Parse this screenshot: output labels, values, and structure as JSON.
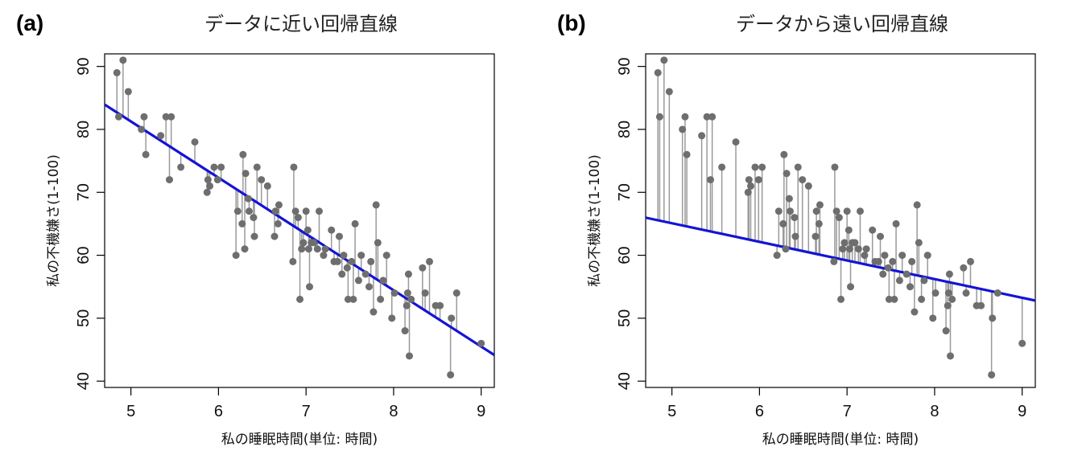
{
  "chart_data": [
    {
      "type": "scatter",
      "panel_label": "(a)",
      "title": "データに近い回帰直線",
      "xlabel": "私の睡眠時間(単位: 時間)",
      "ylabel": "私の不機嫌さ(1-100)",
      "xlim": [
        4.7,
        9.15
      ],
      "ylim": [
        39,
        92
      ],
      "xticks": [
        5,
        6,
        7,
        8,
        9
      ],
      "yticks": [
        40,
        50,
        60,
        70,
        80,
        90
      ],
      "grid": false,
      "residual_lines": true,
      "regression_line": {
        "intercept": 125.96,
        "slope": -8.94,
        "color": "#1414d4"
      },
      "point_color": "#6e6e6e",
      "points": [
        {
          "x": 4.84,
          "y": 89
        },
        {
          "x": 4.86,
          "y": 82
        },
        {
          "x": 4.91,
          "y": 91
        },
        {
          "x": 4.97,
          "y": 86
        },
        {
          "x": 5.12,
          "y": 80
        },
        {
          "x": 5.15,
          "y": 82
        },
        {
          "x": 5.17,
          "y": 76
        },
        {
          "x": 5.34,
          "y": 79
        },
        {
          "x": 5.4,
          "y": 82
        },
        {
          "x": 5.44,
          "y": 72
        },
        {
          "x": 5.46,
          "y": 82
        },
        {
          "x": 5.57,
          "y": 74
        },
        {
          "x": 5.73,
          "y": 78
        },
        {
          "x": 5.87,
          "y": 70
        },
        {
          "x": 5.88,
          "y": 72
        },
        {
          "x": 5.9,
          "y": 71
        },
        {
          "x": 5.95,
          "y": 74
        },
        {
          "x": 5.99,
          "y": 72
        },
        {
          "x": 6.03,
          "y": 74
        },
        {
          "x": 6.2,
          "y": 60
        },
        {
          "x": 6.22,
          "y": 67
        },
        {
          "x": 6.27,
          "y": 65
        },
        {
          "x": 6.28,
          "y": 76
        },
        {
          "x": 6.3,
          "y": 61
        },
        {
          "x": 6.31,
          "y": 73
        },
        {
          "x": 6.34,
          "y": 69
        },
        {
          "x": 6.35,
          "y": 67
        },
        {
          "x": 6.4,
          "y": 66
        },
        {
          "x": 6.41,
          "y": 63
        },
        {
          "x": 6.44,
          "y": 74
        },
        {
          "x": 6.49,
          "y": 72
        },
        {
          "x": 6.56,
          "y": 71
        },
        {
          "x": 6.64,
          "y": 63
        },
        {
          "x": 6.65,
          "y": 67
        },
        {
          "x": 6.68,
          "y": 65
        },
        {
          "x": 6.69,
          "y": 68
        },
        {
          "x": 6.85,
          "y": 59
        },
        {
          "x": 6.86,
          "y": 74
        },
        {
          "x": 6.88,
          "y": 67
        },
        {
          "x": 6.91,
          "y": 66
        },
        {
          "x": 6.93,
          "y": 53
        },
        {
          "x": 6.95,
          "y": 61
        },
        {
          "x": 6.97,
          "y": 62
        },
        {
          "x": 7.0,
          "y": 67
        },
        {
          "x": 7.02,
          "y": 64
        },
        {
          "x": 7.03,
          "y": 61
        },
        {
          "x": 7.04,
          "y": 55
        },
        {
          "x": 7.06,
          "y": 62
        },
        {
          "x": 7.09,
          "y": 62
        },
        {
          "x": 7.13,
          "y": 61
        },
        {
          "x": 7.15,
          "y": 67
        },
        {
          "x": 7.2,
          "y": 60
        },
        {
          "x": 7.22,
          "y": 61
        },
        {
          "x": 7.29,
          "y": 64
        },
        {
          "x": 7.32,
          "y": 59
        },
        {
          "x": 7.36,
          "y": 59
        },
        {
          "x": 7.38,
          "y": 63
        },
        {
          "x": 7.41,
          "y": 57
        },
        {
          "x": 7.43,
          "y": 60
        },
        {
          "x": 7.47,
          "y": 58
        },
        {
          "x": 7.48,
          "y": 53
        },
        {
          "x": 7.52,
          "y": 59
        },
        {
          "x": 7.54,
          "y": 53
        },
        {
          "x": 7.56,
          "y": 65
        },
        {
          "x": 7.6,
          "y": 56
        },
        {
          "x": 7.63,
          "y": 60
        },
        {
          "x": 7.68,
          "y": 57
        },
        {
          "x": 7.72,
          "y": 55
        },
        {
          "x": 7.74,
          "y": 59
        },
        {
          "x": 7.77,
          "y": 51
        },
        {
          "x": 7.8,
          "y": 68
        },
        {
          "x": 7.82,
          "y": 62
        },
        {
          "x": 7.85,
          "y": 53
        },
        {
          "x": 7.88,
          "y": 56
        },
        {
          "x": 7.92,
          "y": 60
        },
        {
          "x": 7.98,
          "y": 50
        },
        {
          "x": 8.01,
          "y": 54
        },
        {
          "x": 8.13,
          "y": 48
        },
        {
          "x": 8.15,
          "y": 52
        },
        {
          "x": 8.16,
          "y": 54
        },
        {
          "x": 8.17,
          "y": 57
        },
        {
          "x": 8.18,
          "y": 44
        },
        {
          "x": 8.2,
          "y": 53
        },
        {
          "x": 8.33,
          "y": 58
        },
        {
          "x": 8.36,
          "y": 54
        },
        {
          "x": 8.41,
          "y": 59
        },
        {
          "x": 8.48,
          "y": 52
        },
        {
          "x": 8.53,
          "y": 52
        },
        {
          "x": 8.65,
          "y": 41
        },
        {
          "x": 8.66,
          "y": 50
        },
        {
          "x": 8.72,
          "y": 54
        },
        {
          "x": 9.0,
          "y": 46
        }
      ]
    },
    {
      "type": "scatter",
      "panel_label": "(b)",
      "title": "データから遠い回帰直線",
      "xlabel": "私の睡眠時間(単位: 時間)",
      "ylabel": "私の不機嫌さ(1-100)",
      "xlim": [
        4.7,
        9.15
      ],
      "ylim": [
        39,
        92
      ],
      "xticks": [
        5,
        6,
        7,
        8,
        9
      ],
      "yticks": [
        40,
        50,
        60,
        70,
        80,
        90
      ],
      "grid": false,
      "residual_lines": true,
      "regression_line": {
        "intercept": 79.89,
        "slope": -2.96,
        "color": "#1414d4"
      },
      "point_color": "#6e6e6e",
      "points": "same as (a)"
    }
  ]
}
